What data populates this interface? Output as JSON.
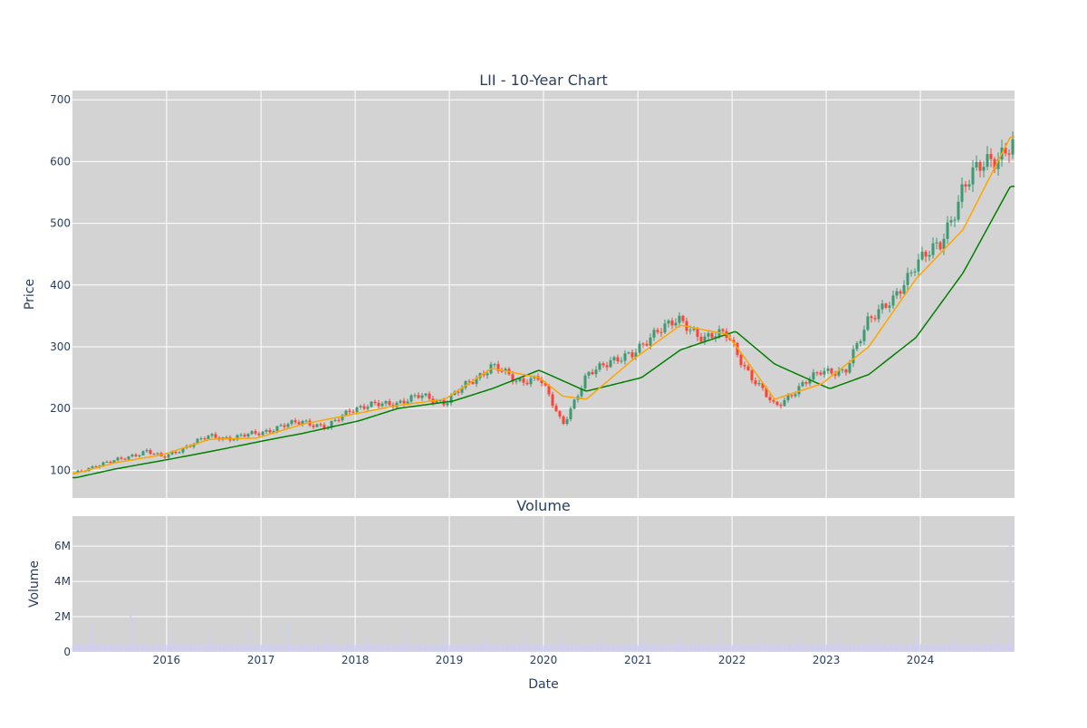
{
  "chart_data": [
    {
      "type": "candlestick",
      "title": "LII - 10-Year Chart",
      "ylabel": "Price",
      "ylim": [
        55,
        715
      ],
      "yticks": [
        100,
        200,
        300,
        400,
        500,
        600,
        700
      ],
      "xlim": [
        "2015-01-01",
        "2024-12-31"
      ],
      "grid": true,
      "legend": "none",
      "colors": {
        "up": "#3d9970",
        "down": "#ff4136",
        "ma_short": "#ffa500",
        "ma_long": "#008000",
        "background": "#d3d3d3",
        "grid": "#ffffff"
      },
      "series": [
        {
          "name": "",
          "kind": "price_close",
          "x": [
            "2015-01",
            "2015-04",
            "2015-07",
            "2015-10",
            "2015-12",
            "2016-03",
            "2016-06",
            "2016-09",
            "2016-12",
            "2017-03",
            "2017-06",
            "2017-09",
            "2017-12",
            "2018-03",
            "2018-06",
            "2018-09",
            "2018-12",
            "2019-03",
            "2019-06",
            "2019-09",
            "2019-12",
            "2020-03",
            "2020-06",
            "2020-09",
            "2020-12",
            "2021-03",
            "2021-06",
            "2021-09",
            "2021-12",
            "2022-03",
            "2022-06",
            "2022-09",
            "2022-12",
            "2023-03",
            "2023-06",
            "2023-09",
            "2023-12",
            "2024-03",
            "2024-06",
            "2024-09",
            "2024-12"
          ],
          "y": [
            95,
            110,
            118,
            132,
            120,
            138,
            155,
            152,
            160,
            170,
            180,
            168,
            200,
            205,
            210,
            220,
            210,
            240,
            270,
            245,
            250,
            175,
            250,
            280,
            285,
            330,
            340,
            315,
            320,
            250,
            205,
            230,
            265,
            255,
            350,
            370,
            440,
            460,
            560,
            600,
            625
          ]
        },
        {
          "name": "",
          "kind": "ma_short",
          "x": [
            "2015-01",
            "2015-06",
            "2015-12",
            "2016-06",
            "2016-12",
            "2017-06",
            "2017-12",
            "2018-06",
            "2018-12",
            "2019-06",
            "2019-12",
            "2020-03",
            "2020-06",
            "2020-12",
            "2021-06",
            "2021-12",
            "2022-06",
            "2022-12",
            "2023-06",
            "2023-12",
            "2024-06",
            "2024-12"
          ],
          "y": [
            95,
            112,
            125,
            150,
            152,
            175,
            190,
            205,
            215,
            265,
            250,
            220,
            215,
            280,
            335,
            320,
            215,
            240,
            300,
            410,
            490,
            640
          ]
        },
        {
          "name": "",
          "kind": "ma_long",
          "x": [
            "2015-01",
            "2015-06",
            "2016-01",
            "2016-06",
            "2017-01",
            "2017-06",
            "2018-01",
            "2018-06",
            "2019-01",
            "2019-06",
            "2019-12",
            "2020-06",
            "2021-01",
            "2021-06",
            "2022-01",
            "2022-06",
            "2023-01",
            "2023-06",
            "2023-12",
            "2024-06",
            "2024-12"
          ],
          "y": [
            88,
            102,
            118,
            130,
            148,
            160,
            180,
            200,
            212,
            232,
            262,
            228,
            250,
            295,
            325,
            272,
            232,
            255,
            315,
            420,
            560
          ]
        }
      ]
    },
    {
      "type": "bar",
      "title": "Volume",
      "ylabel": "Volume",
      "xlabel": "Date",
      "ylim": [
        0,
        7700000
      ],
      "yticks": [
        0,
        2000000,
        4000000,
        6000000
      ],
      "ytick_labels": [
        "0",
        "2M",
        "4M",
        "6M"
      ],
      "xtick_labels": [
        "2016",
        "2017",
        "2018",
        "2019",
        "2020",
        "2021",
        "2022",
        "2023",
        "2024"
      ],
      "colors": {
        "bar": "#d0d0ee"
      },
      "series": [
        {
          "name": "",
          "x": [
            "2015-03",
            "2015-08",
            "2016-01",
            "2016-06",
            "2016-11",
            "2017-04",
            "2017-09",
            "2018-02",
            "2018-07",
            "2018-12",
            "2019-05",
            "2019-10",
            "2020-03",
            "2020-08",
            "2021-01",
            "2021-06",
            "2021-11",
            "2022-04",
            "2022-09",
            "2023-02",
            "2023-07",
            "2023-12",
            "2024-05",
            "2024-10",
            "2024-12"
          ],
          "values": [
            1500000,
            2100000,
            1200000,
            1100000,
            1300000,
            1700000,
            1000000,
            900000,
            1200000,
            1000000,
            900000,
            1000000,
            1200000,
            900000,
            800000,
            900000,
            1500000,
            900000,
            800000,
            1000000,
            800000,
            900000,
            800000,
            1200000,
            7500000
          ]
        }
      ]
    }
  ]
}
